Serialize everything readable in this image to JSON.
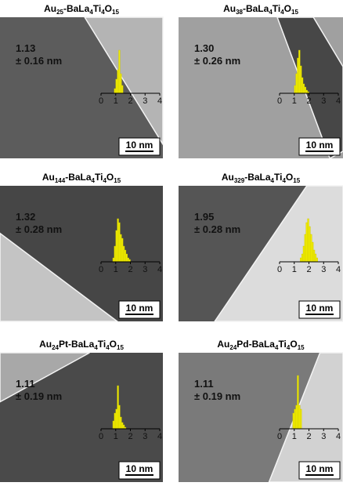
{
  "panels": [
    {
      "title": [
        "Au",
        "25",
        "-BaLa",
        "4",
        "Ti",
        "4",
        "O",
        "15"
      ],
      "size": "1.13",
      "deviation": "± 0.16 nm",
      "histogram": {
        "bins": [
          0.9,
          1.0,
          1.1,
          1.2,
          1.3,
          1.4,
          1.5
        ],
        "counts": [
          6,
          18,
          30,
          55,
          25,
          10
        ],
        "xlim": [
          0,
          4
        ],
        "xticks": [
          0,
          1,
          2,
          3,
          4
        ]
      },
      "scale_bar": "10 nm"
    },
    {
      "title": [
        "Au",
        "38",
        "-BaLa",
        "4",
        "Ti",
        "4",
        "O",
        "15"
      ],
      "size": "1.30",
      "deviation": "± 0.26 nm",
      "histogram": {
        "bins": [
          1.0,
          1.1,
          1.2,
          1.3,
          1.4,
          1.5,
          1.6,
          1.7,
          1.8,
          1.9,
          2.0
        ],
        "counts": [
          10,
          25,
          45,
          55,
          35,
          20,
          12,
          8,
          4,
          2
        ],
        "xlim": [
          0,
          4
        ],
        "xticks": [
          0,
          1,
          2,
          3,
          4
        ]
      },
      "scale_bar": "10 nm"
    },
    {
      "title": [
        "Au",
        "144",
        "-BaLa",
        "4",
        "Ti",
        "4",
        "O",
        "15"
      ],
      "size": "1.32",
      "deviation": "± 0.28 nm",
      "histogram": {
        "bins": [
          0.8,
          0.9,
          1.0,
          1.1,
          1.2,
          1.3,
          1.4,
          1.5,
          1.6,
          1.7,
          1.8,
          1.9,
          2.0
        ],
        "counts": [
          5,
          20,
          40,
          55,
          50,
          35,
          30,
          20,
          15,
          10,
          5,
          3
        ],
        "xlim": [
          0,
          4
        ],
        "xticks": [
          0,
          1,
          2,
          3,
          4
        ]
      },
      "scale_bar": "10 nm"
    },
    {
      "title": [
        "Au",
        "329",
        "-BaLa",
        "4",
        "Ti",
        "4",
        "O",
        "15"
      ],
      "size": "1.95",
      "deviation": "± 0.28 nm",
      "histogram": {
        "bins": [
          1.4,
          1.5,
          1.6,
          1.7,
          1.8,
          1.9,
          2.0,
          2.1,
          2.2,
          2.3,
          2.4,
          2.5,
          2.6
        ],
        "counts": [
          5,
          10,
          20,
          35,
          50,
          55,
          45,
          35,
          25,
          15,
          10,
          5
        ],
        "xlim": [
          0,
          4
        ],
        "xticks": [
          0,
          1,
          2,
          3,
          4
        ]
      },
      "scale_bar": "10 nm"
    },
    {
      "title": [
        "Au",
        "24",
        "Pt-BaLa",
        "4",
        "Ti",
        "4",
        "O",
        "15"
      ],
      "size": "1.11",
      "deviation": "± 0.19 nm",
      "histogram": {
        "bins": [
          0.8,
          0.9,
          1.0,
          1.1,
          1.2,
          1.3,
          1.4,
          1.5,
          1.6,
          1.7
        ],
        "counts": [
          10,
          20,
          25,
          55,
          30,
          15,
          8,
          5,
          2
        ],
        "xlim": [
          0,
          4
        ],
        "xticks": [
          0,
          1,
          2,
          3,
          4
        ]
      },
      "scale_bar": "10 nm"
    },
    {
      "title": [
        "Au",
        "24",
        "Pd-BaLa",
        "4",
        "Ti",
        "4",
        "O",
        "15"
      ],
      "size": "1.11",
      "deviation": "± 0.19 nm",
      "histogram": {
        "bins": [
          0.9,
          1.0,
          1.1,
          1.2,
          1.3,
          1.4,
          1.5
        ],
        "counts": [
          20,
          25,
          30,
          68,
          30,
          25
        ],
        "xlim": [
          0,
          4
        ],
        "xticks": [
          0,
          1,
          2,
          3,
          4
        ]
      },
      "scale_bar": "10 nm"
    }
  ]
}
